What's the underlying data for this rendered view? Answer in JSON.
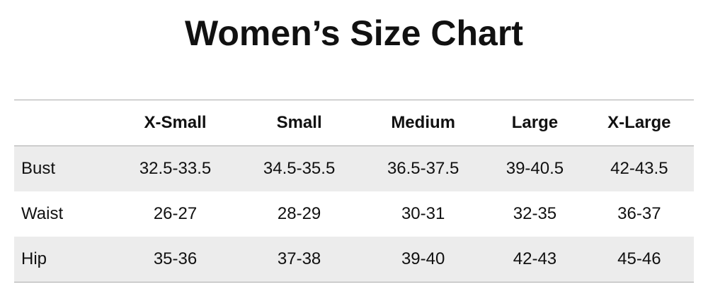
{
  "title": "Women’s Size Chart",
  "table": {
    "header": [
      "X-Small",
      "Small",
      "Medium",
      "Large",
      "X-Large"
    ],
    "rows": [
      [
        "Bust",
        "32.5-33.5",
        "34.5-35.5",
        "36.5-37.5",
        "39-40.5",
        "42-43.5"
      ],
      [
        "Waist",
        "26-27",
        "28-29",
        "30-31",
        "32-35",
        "36-37"
      ],
      [
        "Hip",
        "35-36",
        "37-38",
        "39-40",
        "42-43",
        "45-46"
      ]
    ]
  }
}
